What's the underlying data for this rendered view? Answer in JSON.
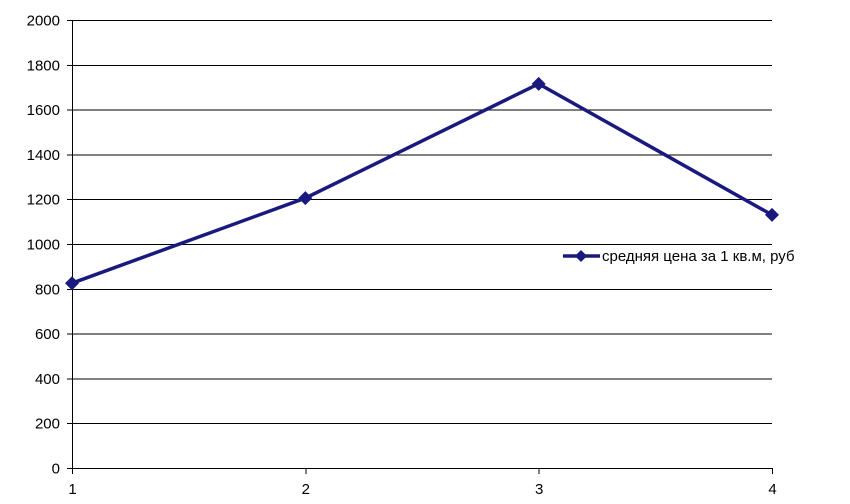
{
  "chart_data": {
    "type": "line",
    "title": "",
    "xlabel": "",
    "ylabel": "",
    "categories": [
      "1",
      "2",
      "3",
      "4"
    ],
    "ylim": [
      0,
      2000
    ],
    "y_ticks": [
      0,
      200,
      400,
      600,
      800,
      1000,
      1200,
      1400,
      1600,
      1800,
      2000
    ],
    "grid": true,
    "legend_position": "right",
    "series": [
      {
        "name": "средняя цена за 1 кв.м, руб",
        "values": [
          825,
          1205,
          1715,
          1130
        ],
        "color": "#1a1a7e",
        "marker": "diamond"
      }
    ]
  }
}
